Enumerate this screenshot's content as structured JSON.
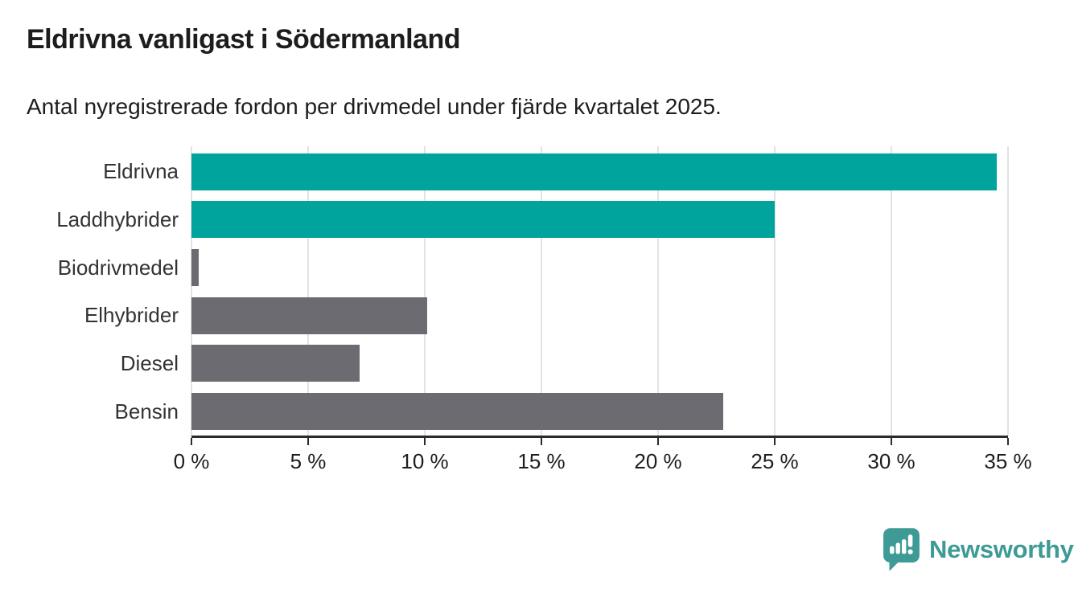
{
  "header": {
    "title": "Eldrivna vanligast i Södermanland",
    "subtitle": "Antal nyregistrerade fordon per drivmedel under fjärde kvartalet 2025."
  },
  "chart_data": {
    "type": "bar",
    "orientation": "horizontal",
    "title": "Eldrivna vanligast i Södermanland",
    "subtitle": "Antal nyregistrerade fordon per drivmedel under fjärde kvartalet 2025.",
    "xlabel": "",
    "ylabel": "",
    "categories": [
      "Eldrivna",
      "Laddhybrider",
      "Biodrivmedel",
      "Elhybrider",
      "Diesel",
      "Bensin"
    ],
    "values": [
      34.5,
      25.0,
      0.3,
      10.1,
      7.2,
      22.8
    ],
    "unit": "%",
    "bar_colors": [
      "#00A49C",
      "#00A49C",
      "#6C6B72",
      "#6C6B72",
      "#6C6B72",
      "#6C6B72"
    ],
    "xlim": [
      0,
      35
    ],
    "x_ticks": [
      0,
      5,
      10,
      15,
      20,
      25,
      30,
      35
    ],
    "x_tick_labels": [
      "0 %",
      "5 %",
      "10 %",
      "15 %",
      "20 %",
      "25 %",
      "30 %",
      "35 %"
    ],
    "grid": "vertical",
    "legend": "none"
  },
  "branding": {
    "logo_text": "Newsworthy",
    "logo_color": "#3D9A94",
    "logo_icon": "bar-chart-speech-bubble-icon"
  },
  "colors": {
    "accent_teal": "#00A49C",
    "bar_gray": "#6C6B72",
    "brand_teal": "#3D9A94",
    "grid_gray": "#E3E3E3",
    "axis_dark": "#2B2B2B",
    "text_dark": "#1D1D1D"
  }
}
